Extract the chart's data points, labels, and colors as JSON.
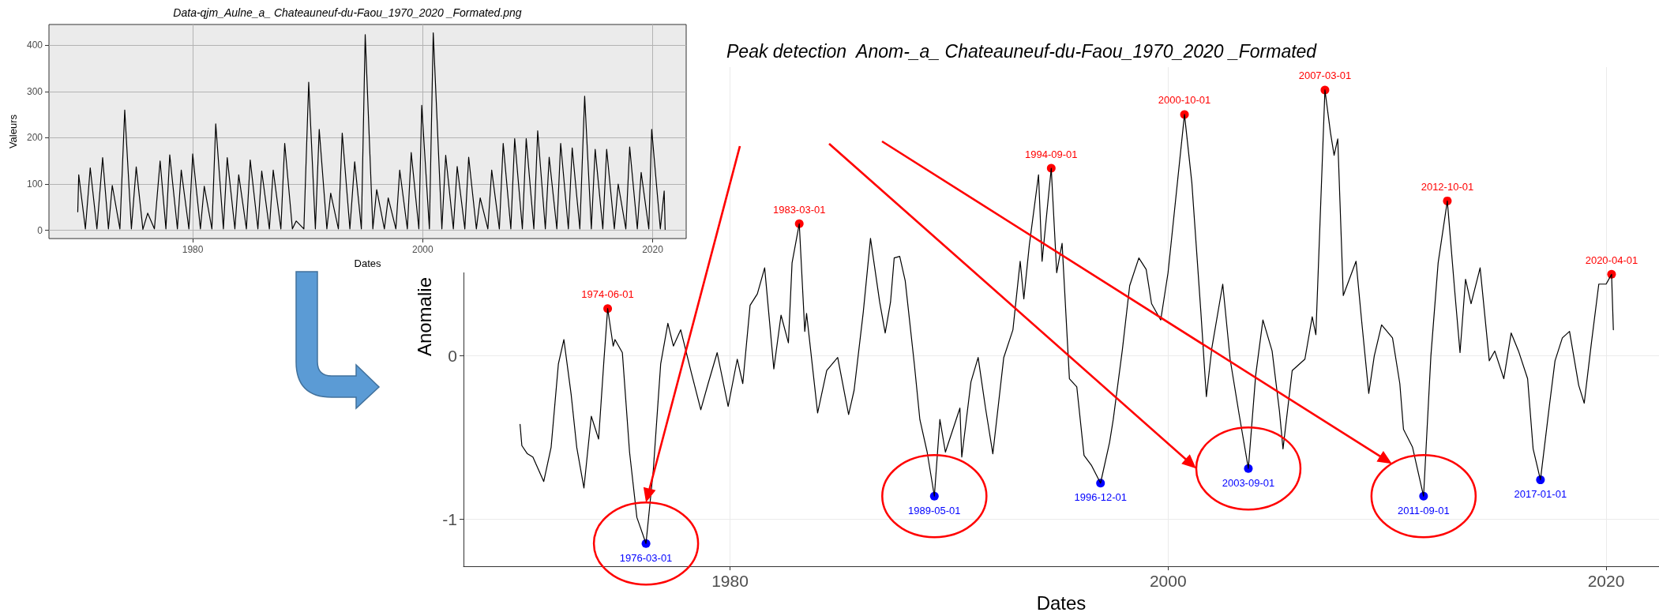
{
  "chart_data": [
    {
      "type": "line",
      "title": "Data-qjm_Aulne_a_ Chateauneuf-du-Faou_1970_2020 _Formated.png",
      "xlabel": "Dates",
      "ylabel": "Valeurs",
      "x": [
        "1970-01",
        "1970-02",
        "1970-09",
        "1971-02",
        "1971-09",
        "1972-03",
        "1972-09",
        "1973-01",
        "1973-09",
        "1974-02",
        "1974-09",
        "1975-02",
        "1975-09",
        "1976-02",
        "1976-09",
        "1977-03",
        "1977-09",
        "1978-01",
        "1978-09",
        "1979-01",
        "1979-09",
        "1980-01",
        "1980-09",
        "1981-01",
        "1981-09",
        "1982-01",
        "1982-09",
        "1983-01",
        "1983-09",
        "1984-01",
        "1984-09",
        "1985-01",
        "1985-09",
        "1986-01",
        "1986-09",
        "1987-01",
        "1987-09",
        "1988-01",
        "1988-09",
        "1989-01",
        "1989-09",
        "1990-02",
        "1990-09",
        "1991-01",
        "1991-09",
        "1992-01",
        "1992-09",
        "1993-01",
        "1993-09",
        "1994-02",
        "1994-09",
        "1995-01",
        "1995-09",
        "1996-01",
        "1996-09",
        "1997-01",
        "1997-09",
        "1998-01",
        "1998-09",
        "1999-01",
        "1999-09",
        "1999-12",
        "2000-08",
        "2000-12",
        "2001-09",
        "2002-01",
        "2002-09",
        "2003-01",
        "2003-09",
        "2004-01",
        "2004-09",
        "2005-01",
        "2005-09",
        "2006-01",
        "2006-09",
        "2007-01",
        "2007-09",
        "2008-01",
        "2008-09",
        "2009-01",
        "2009-09",
        "2010-01",
        "2010-09",
        "2011-01",
        "2011-09",
        "2012-01",
        "2012-09",
        "2013-01",
        "2013-09",
        "2014-02",
        "2014-09",
        "2015-01",
        "2015-09",
        "2016-01",
        "2016-09",
        "2017-01",
        "2017-09",
        "2018-01",
        "2018-09",
        "2019-01",
        "2019-09",
        "2019-12",
        "2020-09",
        "2021-01",
        "2021-02"
      ],
      "series": [
        {
          "color": "#000000",
          "values": [
            40,
            120,
            3,
            135,
            3,
            157,
            3,
            97,
            3,
            260,
            3,
            137,
            2,
            37,
            3,
            150,
            3,
            163,
            3,
            130,
            3,
            165,
            3,
            95,
            3,
            230,
            3,
            157,
            3,
            120,
            3,
            152,
            3,
            128,
            3,
            130,
            3,
            188,
            3,
            20,
            3,
            320,
            3,
            218,
            3,
            80,
            3,
            210,
            3,
            148,
            3,
            423,
            3,
            88,
            3,
            70,
            3,
            130,
            3,
            168,
            3,
            270,
            3,
            427,
            3,
            162,
            3,
            138,
            3,
            158,
            3,
            70,
            3,
            130,
            3,
            188,
            3,
            198,
            3,
            198,
            3,
            215,
            3,
            158,
            3,
            188,
            3,
            178,
            3,
            290,
            3,
            175,
            3,
            175,
            3,
            100,
            3,
            180,
            3,
            125,
            3,
            218,
            3,
            85,
            2
          ]
        }
      ],
      "xlim": [
        "1967-07",
        "2022-12"
      ],
      "xticks": [
        "1980",
        "2000",
        "2020"
      ],
      "ylim": [
        -18,
        445
      ],
      "yticks": [
        0,
        100,
        200,
        300,
        400
      ],
      "grid": true,
      "marker": "none"
    },
    {
      "type": "line",
      "title": "Peak detection  Anom-_a_ Chateauneuf-du-Faou_1970_2020 _Formated",
      "xlabel": "Dates",
      "ylabel": "Anomalie",
      "x": [
        "1970-06",
        "1970-07",
        "1970-10",
        "1971-01",
        "1971-07",
        "1971-11",
        "1972-03",
        "1972-06",
        "1972-10",
        "1973-01",
        "1973-05",
        "1973-09",
        "1974-01",
        "1974-04",
        "1974-06",
        "1974-09",
        "1974-10",
        "1975-02",
        "1975-06",
        "1975-10",
        "1976-03",
        "1976-07",
        "1976-11",
        "1977-03",
        "1977-06",
        "1977-10",
        "1978-04",
        "1978-09",
        "1979-01",
        "1979-06",
        "1979-12",
        "1980-05",
        "1980-08",
        "1980-12",
        "1981-04",
        "1981-08",
        "1982-01",
        "1982-05",
        "1982-09",
        "1982-11",
        "1983-03",
        "1983-06",
        "1983-07",
        "1984-01",
        "1984-06",
        "1984-12",
        "1985-06",
        "1985-09",
        "1986-02",
        "1986-06",
        "1986-11",
        "1987-02",
        "1987-05",
        "1987-07",
        "1987-10",
        "1988-01",
        "1988-06",
        "1988-09",
        "1989-01",
        "1989-05",
        "1989-08",
        "1989-11",
        "1990-07",
        "1990-08",
        "1991-01",
        "1991-05",
        "1991-09",
        "1992-01",
        "1992-07",
        "1992-12",
        "1993-04",
        "1993-06",
        "1993-09",
        "1994-02",
        "1994-04",
        "1994-09",
        "1994-12",
        "1995-03",
        "1995-07",
        "1995-11",
        "1996-03",
        "1996-07",
        "1996-12",
        "1997-05",
        "1997-07",
        "1997-12",
        "1998-04",
        "1998-09",
        "1999-01",
        "1999-04",
        "1999-09",
        "2000-01",
        "2000-10",
        "2001-02",
        "2001-07",
        "2001-10",
        "2002-01",
        "2002-07",
        "2002-11",
        "2003-04",
        "2003-09",
        "2004-01",
        "2004-05",
        "2004-10",
        "2005-02",
        "2005-04",
        "2005-09",
        "2006-04",
        "2006-08",
        "2006-10",
        "2007-03",
        "2007-06",
        "2007-08",
        "2007-10",
        "2008-01",
        "2008-08",
        "2008-11",
        "2009-03",
        "2009-06",
        "2009-10",
        "2010-04",
        "2010-08",
        "2010-10",
        "2011-03",
        "2011-09",
        "2012-01",
        "2012-05",
        "2012-10",
        "2013-02",
        "2013-05",
        "2013-08",
        "2013-11",
        "2014-04",
        "2014-09",
        "2014-12",
        "2015-05",
        "2015-09",
        "2016-01",
        "2016-06",
        "2016-09",
        "2017-01",
        "2017-06",
        "2017-09",
        "2018-01",
        "2018-05",
        "2018-10",
        "2019-01",
        "2019-05",
        "2019-09",
        "2020-01",
        "2020-04",
        "2020-05"
      ],
      "series": [
        {
          "color": "#000000",
          "marker": "none",
          "values": [
            -0.42,
            -0.55,
            -0.6,
            -0.62,
            -0.77,
            -0.56,
            -0.05,
            0.1,
            -0.24,
            -0.56,
            -0.81,
            -0.37,
            -0.51,
            -0.02,
            0.29,
            0.06,
            0.1,
            0.02,
            -0.59,
            -0.99,
            -1.15,
            -0.7,
            -0.05,
            0.2,
            0.06,
            0.16,
            -0.11,
            -0.33,
            -0.17,
            0.02,
            -0.31,
            -0.02,
            -0.17,
            0.31,
            0.38,
            0.54,
            -0.08,
            0.25,
            0.08,
            0.57,
            0.81,
            0.15,
            0.26,
            -0.35,
            -0.09,
            -0.01,
            -0.36,
            -0.21,
            0.27,
            0.72,
            0.33,
            0.14,
            0.33,
            0.6,
            0.61,
            0.46,
            -0.05,
            -0.39,
            -0.59,
            -0.86,
            -0.39,
            -0.59,
            -0.32,
            -0.62,
            -0.16,
            -0.01,
            -0.32,
            -0.6,
            -0.01,
            0.16,
            0.58,
            0.35,
            0.68,
            1.11,
            0.58,
            1.15,
            0.51,
            0.69,
            -0.14,
            -0.19,
            -0.61,
            -0.67,
            -0.78,
            -0.53,
            -0.39,
            0.04,
            0.43,
            0.6,
            0.53,
            0.32,
            0.22,
            0.51,
            1.48,
            1.06,
            0.27,
            -0.25,
            0.05,
            0.44,
            -0.02,
            -0.36,
            -0.69,
            -0.12,
            0.22,
            0.03,
            -0.34,
            -0.57,
            -0.09,
            -0.02,
            0.24,
            0.13,
            1.63,
            1.37,
            1.23,
            1.33,
            0.37,
            0.58,
            0.22,
            -0.23,
            0,
            0.19,
            0.11,
            -0.17,
            -0.45,
            -0.56,
            -0.86,
            0,
            0.57,
            0.95,
            0.4,
            0.02,
            0.47,
            0.32,
            0.54,
            -0.03,
            0.03,
            -0.14,
            0.14,
            0.03,
            -0.14,
            -0.57,
            -0.76,
            -0.3,
            -0.03,
            0.11,
            0.15,
            -0.18,
            -0.29,
            0.08,
            0.44,
            0.44,
            0.5,
            0.16
          ]
        },
        {
          "type": "scatter",
          "color": "#ff0000",
          "marker": "circle",
          "x": [
            "1974-06",
            "1983-03",
            "1994-09",
            "2000-10",
            "2007-03",
            "2012-10",
            "2020-04"
          ],
          "values": [
            0.29,
            0.81,
            1.15,
            1.48,
            1.63,
            0.95,
            0.5
          ],
          "value_labels": [
            "1974-06-01",
            "1983-03-01",
            "1994-09-01",
            "2000-10-01",
            "2007-03-01",
            "2012-10-01",
            "2020-04-01"
          ]
        },
        {
          "type": "scatter",
          "color": "#0000ff",
          "marker": "circle",
          "x": [
            "1976-03",
            "1989-05",
            "1996-12",
            "2003-09",
            "2011-09",
            "2017-01"
          ],
          "values": [
            -1.15,
            -0.86,
            -0.78,
            -0.69,
            -0.86,
            -0.76
          ],
          "value_labels": [
            "1976-03-01",
            "1989-05-01",
            "1996-12-01",
            "2003-09-01",
            "2011-09-01",
            "2017-01-01"
          ]
        }
      ],
      "xlim": [
        "1967-11",
        "2022-06"
      ],
      "xticks": [
        "1980",
        "2000",
        "2020"
      ],
      "ylim": [
        -1.29,
        1.77
      ],
      "yticks": [
        -1,
        0
      ],
      "grid": true
    }
  ]
}
